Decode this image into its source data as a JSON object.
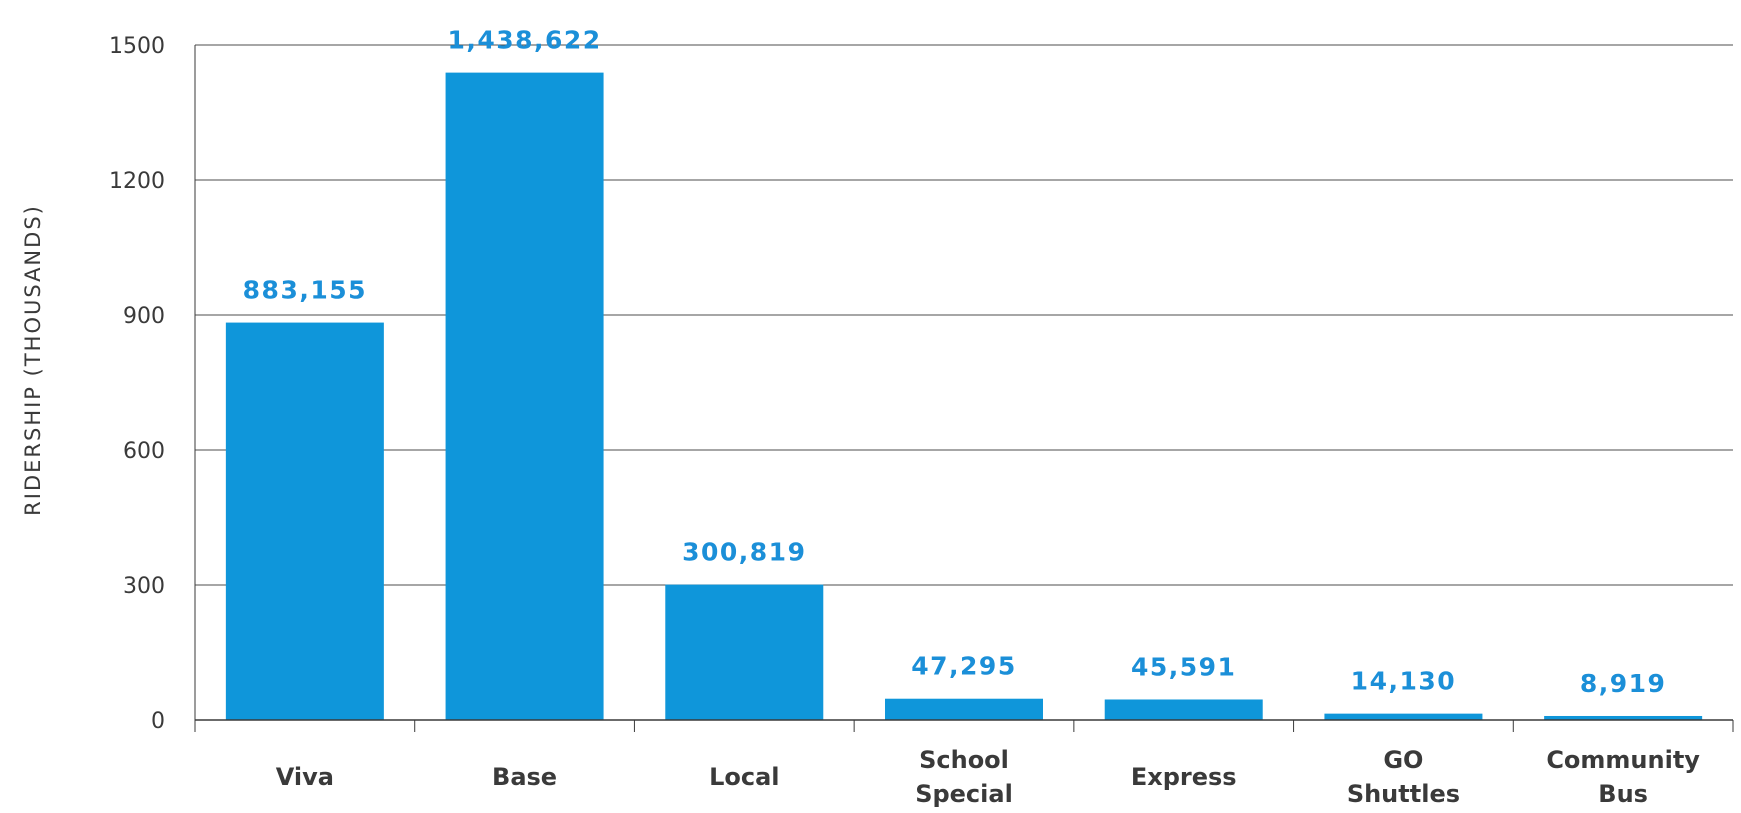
{
  "chart_data": {
    "type": "bar",
    "categories": [
      "Viva",
      "Base",
      "Local",
      "School Special",
      "Express",
      "GO Shuttles",
      "Community Bus"
    ],
    "category_lines": [
      [
        "Viva"
      ],
      [
        "Base"
      ],
      [
        "Local"
      ],
      [
        "School",
        "Special"
      ],
      [
        "Express"
      ],
      [
        "GO",
        "Shuttles"
      ],
      [
        "Community",
        "Bus"
      ]
    ],
    "values": [
      883.155,
      1438.622,
      300.819,
      47.295,
      45.591,
      14.13,
      8.919
    ],
    "data_labels": [
      "883,155",
      "1,438,622",
      "300,819",
      "47,295",
      "45,591",
      "14,130",
      "8,919"
    ],
    "title": "",
    "xlabel": "",
    "ylabel": "RIDERSHIP (THOUSANDS)",
    "ylim": [
      0,
      1500
    ],
    "yticks": [
      0,
      300,
      600,
      900,
      1200,
      1500
    ],
    "grid": true,
    "colors": {
      "bar": "#0f96da",
      "grid": "#4d4d4d",
      "data_label": "#1b8fd8",
      "text": "#3a3a3a"
    }
  }
}
